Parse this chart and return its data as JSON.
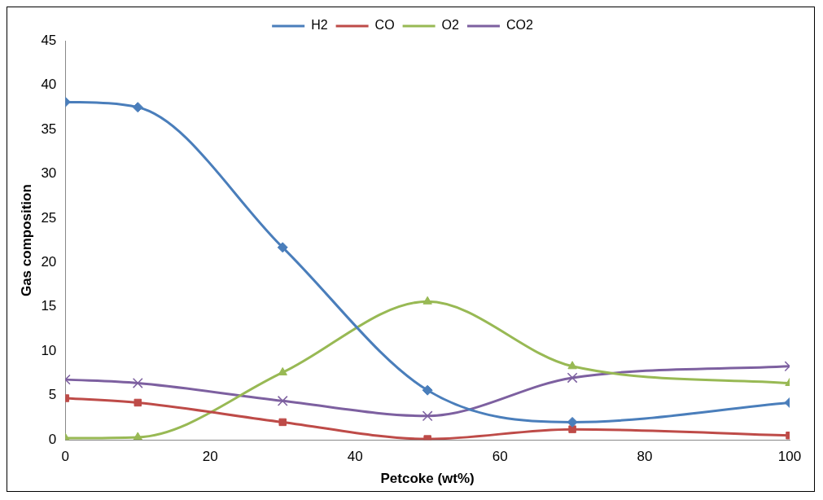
{
  "chart_data": {
    "type": "line",
    "xlabel": "Petcoke (wt%)",
    "ylabel": "Gas composition",
    "x": [
      0,
      10,
      30,
      50,
      70,
      100
    ],
    "xlim": [
      0,
      100
    ],
    "xticks": [
      0,
      20,
      40,
      60,
      80,
      100
    ],
    "ylim": [
      0,
      45
    ],
    "yticks": [
      0,
      5,
      10,
      15,
      20,
      25,
      30,
      35,
      40,
      45
    ],
    "grid": false,
    "legend": "top",
    "series": [
      {
        "name": "H2",
        "color": "#4a7ebb",
        "marker": "diamond",
        "values": [
          38.1,
          37.5,
          21.7,
          5.6,
          2.0,
          4.2
        ]
      },
      {
        "name": "CO",
        "color": "#be4b48",
        "marker": "square",
        "values": [
          4.7,
          4.2,
          2.0,
          0.1,
          1.2,
          0.5
        ]
      },
      {
        "name": "O2",
        "color": "#98b954",
        "marker": "triangle",
        "values": [
          0.2,
          0.3,
          7.6,
          15.6,
          8.3,
          6.4
        ]
      },
      {
        "name": "CO2",
        "color": "#7d60a0",
        "marker": "cross",
        "values": [
          6.8,
          6.4,
          4.4,
          2.7,
          7.0,
          8.3
        ]
      }
    ]
  }
}
